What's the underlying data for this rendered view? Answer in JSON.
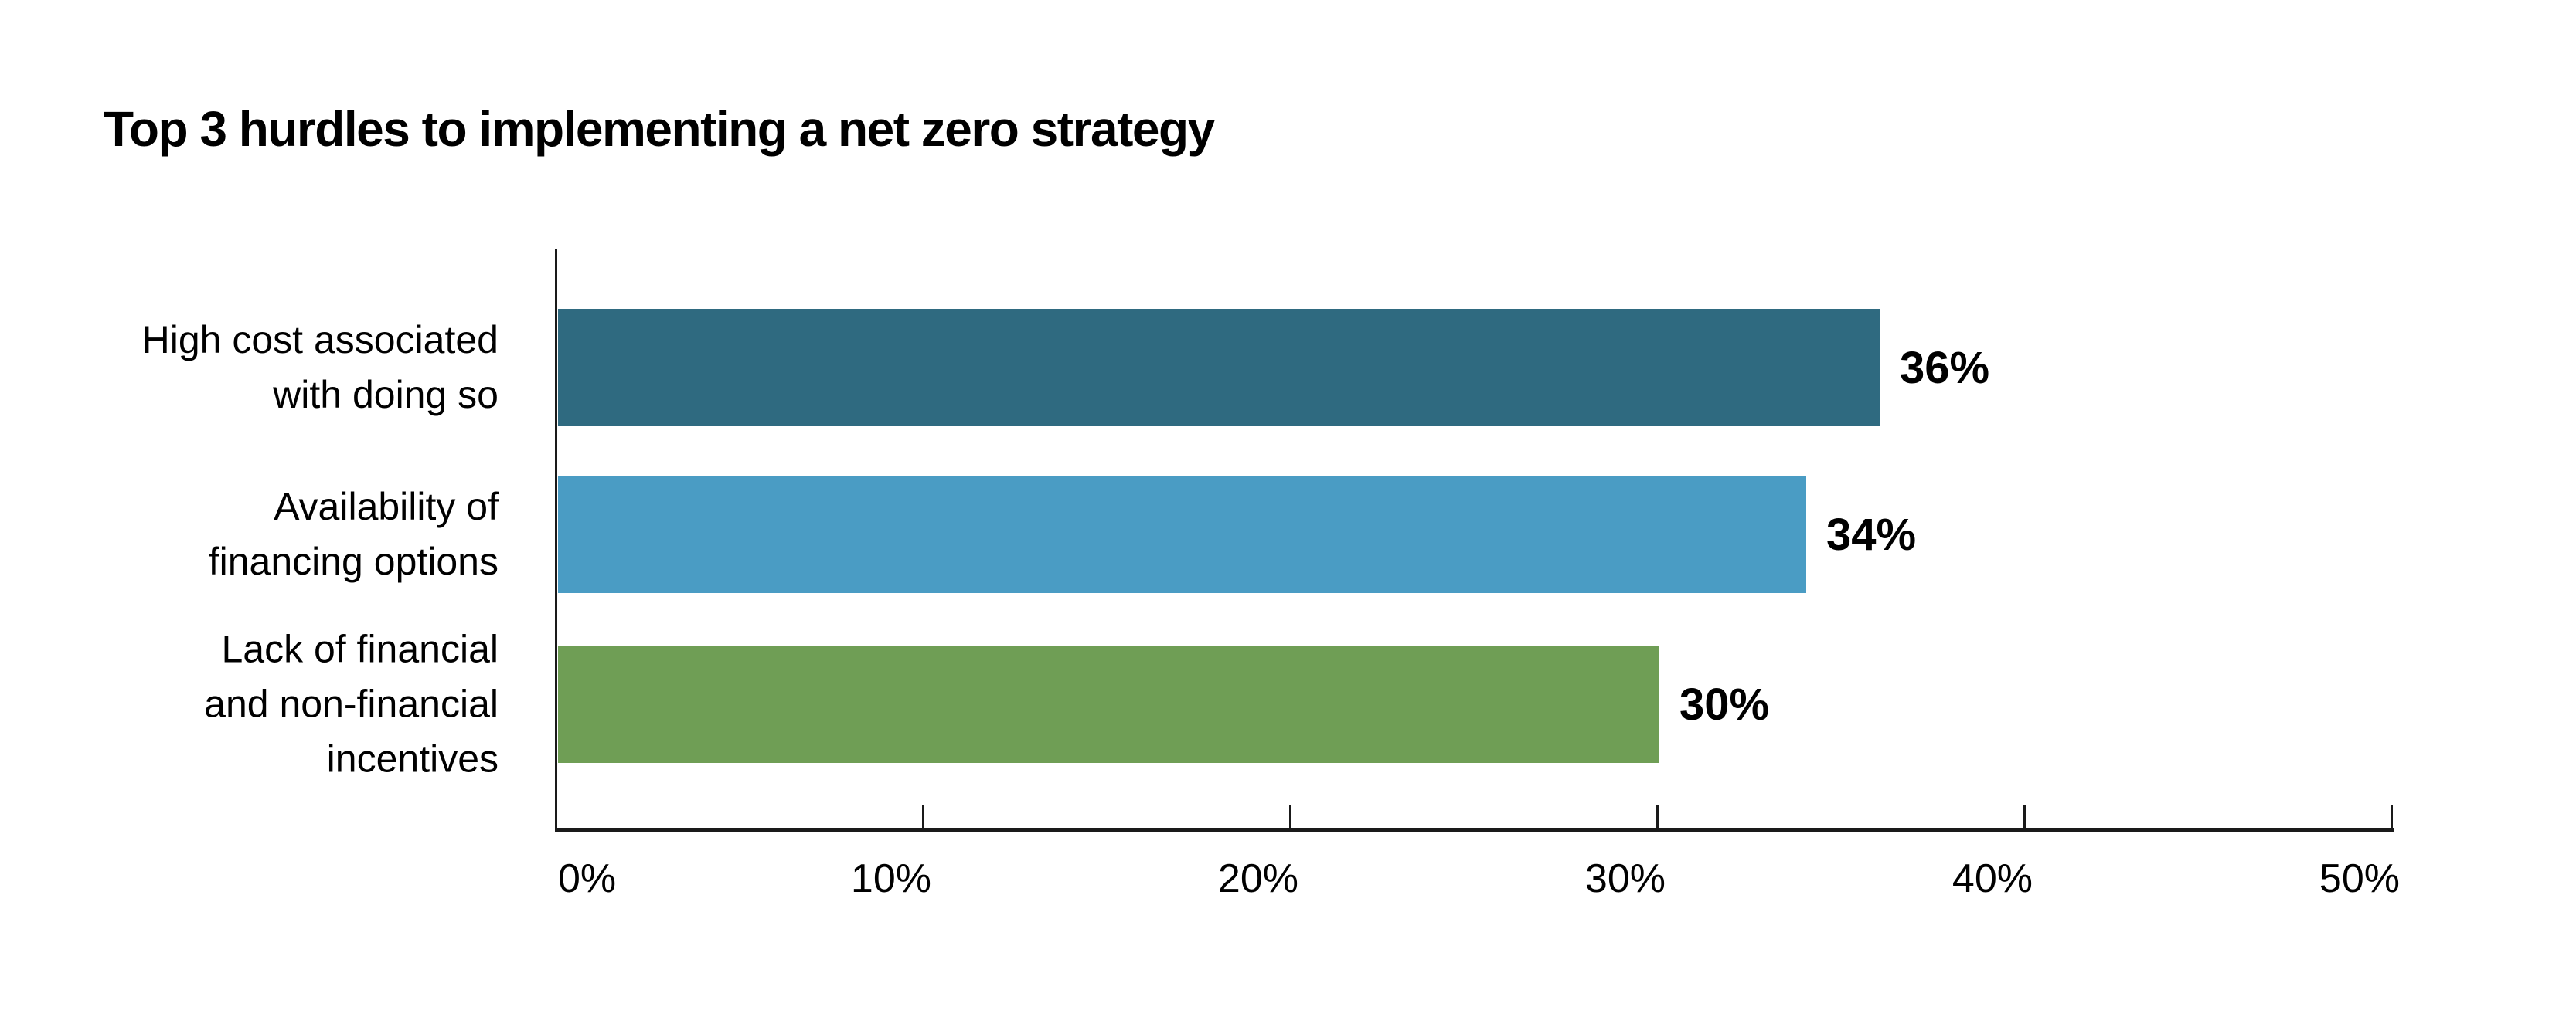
{
  "page": {
    "background": "#FFFFFF",
    "text_color": "#000000",
    "axis_color": "#1A1A1A"
  },
  "chart_data": {
    "type": "bar",
    "orientation": "horizontal",
    "title": "Top 3 hurdles to implementing a net zero strategy",
    "categories": [
      "High cost associated with doing so",
      "Availability of financing options",
      "Lack of financial and non-financial incentives"
    ],
    "values": [
      36,
      34,
      30
    ],
    "value_labels": [
      "36%",
      "34%",
      "30%"
    ],
    "bar_colors": [
      "#2F6A80",
      "#4A9CC4",
      "#6F9E55"
    ],
    "xlabel": "",
    "ylabel": "",
    "xlim": [
      0,
      50
    ],
    "x_tick_values": [
      0,
      10,
      20,
      30,
      40,
      50
    ],
    "x_tick_labels": [
      "0%",
      "10%",
      "20%",
      "30%",
      "40%",
      "50%"
    ],
    "grid": false,
    "legend": "none"
  },
  "display": {
    "category_lines": [
      "High cost associated\nwith doing so",
      "Availability of\nfinancing options",
      "Lack of financial\nand non-financial\nincentives"
    ]
  }
}
